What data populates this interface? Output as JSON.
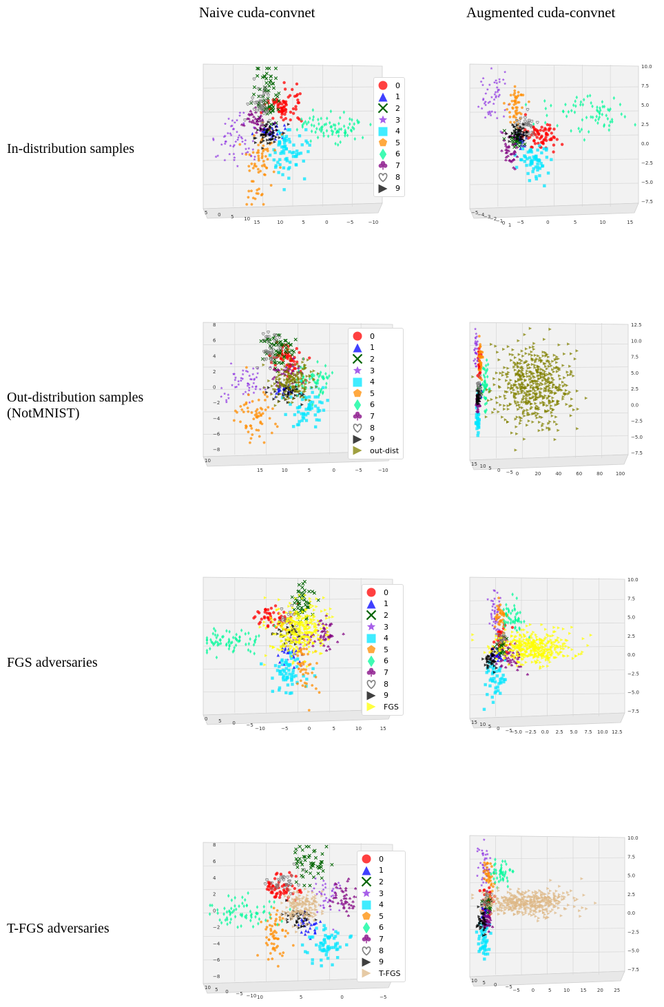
{
  "figure": {
    "column_titles": [
      "Naive cuda-convnet",
      "Augmented cuda-convnet"
    ],
    "row_titles": [
      "In-distribution samples",
      "Out-distribution samples\n(NotMNIST)",
      "FGS adversaries",
      "T-FGS adversaries"
    ]
  },
  "class_styles": [
    {
      "label": "0",
      "marker": "circle",
      "color": "#ff0000"
    },
    {
      "label": "1",
      "marker": "triangle-up",
      "color": "#0000ff"
    },
    {
      "label": "2",
      "marker": "x",
      "color": "#006400"
    },
    {
      "label": "3",
      "marker": "star",
      "color": "#8a2be2"
    },
    {
      "label": "4",
      "marker": "square",
      "color": "#00e5ff"
    },
    {
      "label": "5",
      "marker": "pentagon",
      "color": "#ff8c00"
    },
    {
      "label": "6",
      "marker": "diamond",
      "color": "#00fa9a"
    },
    {
      "label": "7",
      "marker": "club",
      "color": "#800080"
    },
    {
      "label": "8",
      "marker": "heart",
      "color": "#808080"
    },
    {
      "label": "9",
      "marker": "triangle-right",
      "color": "#000000"
    }
  ],
  "extra_styles": {
    "out-dist": {
      "marker": "triangle-right",
      "color": "#808000"
    },
    "FGS": {
      "marker": "triangle-right",
      "color": "#ffff00"
    },
    "T-FGS": {
      "marker": "triangle-right",
      "color": "#deb887"
    }
  },
  "chart_data": [
    {
      "type": "scatter",
      "row": "In-distribution samples",
      "column": "Naive cuda-convnet",
      "legend": [
        "0",
        "1",
        "2",
        "3",
        "4",
        "5",
        "6",
        "7",
        "8",
        "9"
      ],
      "axis_a_ticks": [
        "5",
        "0",
        "5",
        "10"
      ],
      "axis_b_ticks": [
        "15",
        "10",
        "5",
        "0",
        "−5",
        "−10"
      ],
      "axis_v_ticks": [],
      "clusters": [
        {
          "label": "0",
          "cx": 0.45,
          "cy": 0.3,
          "sx": 0.05,
          "sy": 0.06,
          "n": 70
        },
        {
          "label": "1",
          "cx": 0.38,
          "cy": 0.47,
          "sx": 0.03,
          "sy": 0.03,
          "n": 30
        },
        {
          "label": "2",
          "cx": 0.35,
          "cy": 0.22,
          "sx": 0.04,
          "sy": 0.11,
          "n": 70
        },
        {
          "label": "3",
          "cx": 0.2,
          "cy": 0.52,
          "sx": 0.07,
          "sy": 0.08,
          "n": 60
        },
        {
          "label": "4",
          "cx": 0.48,
          "cy": 0.6,
          "sx": 0.05,
          "sy": 0.09,
          "n": 70
        },
        {
          "label": "5",
          "cx": 0.32,
          "cy": 0.72,
          "sx": 0.04,
          "sy": 0.13,
          "n": 70
        },
        {
          "label": "6",
          "cx": 0.72,
          "cy": 0.43,
          "sx": 0.1,
          "sy": 0.05,
          "n": 80
        },
        {
          "label": "7",
          "cx": 0.3,
          "cy": 0.4,
          "sx": 0.04,
          "sy": 0.05,
          "n": 45
        },
        {
          "label": "8",
          "cx": 0.32,
          "cy": 0.28,
          "sx": 0.03,
          "sy": 0.08,
          "n": 40
        },
        {
          "label": "9",
          "cx": 0.36,
          "cy": 0.5,
          "sx": 0.04,
          "sy": 0.04,
          "n": 50
        }
      ]
    },
    {
      "type": "scatter",
      "row": "In-distribution samples",
      "column": "Augmented cuda-convnet",
      "legend": [],
      "axis_a_ticks": [
        "−5",
        "−4",
        "−3",
        "−2",
        "−1",
        "0",
        "1"
      ],
      "axis_b_ticks": [
        "−5",
        "0",
        "5",
        "10",
        "15"
      ],
      "axis_v_ticks": [
        "10.0",
        "7.5",
        "5.0",
        "2.5",
        "0.0",
        "−2.5",
        "−5.0",
        "−7.5"
      ],
      "clusters": [
        {
          "label": "0",
          "cx": 0.42,
          "cy": 0.5,
          "sx": 0.05,
          "sy": 0.05,
          "n": 70
        },
        {
          "label": "1",
          "cx": 0.3,
          "cy": 0.52,
          "sx": 0.02,
          "sy": 0.03,
          "n": 25
        },
        {
          "label": "2",
          "cx": 0.27,
          "cy": 0.53,
          "sx": 0.02,
          "sy": 0.03,
          "n": 30
        },
        {
          "label": "3",
          "cx": 0.14,
          "cy": 0.22,
          "sx": 0.04,
          "sy": 0.1,
          "n": 50
        },
        {
          "label": "4",
          "cx": 0.38,
          "cy": 0.68,
          "sx": 0.05,
          "sy": 0.06,
          "n": 60
        },
        {
          "label": "5",
          "cx": 0.27,
          "cy": 0.28,
          "sx": 0.03,
          "sy": 0.08,
          "n": 50
        },
        {
          "label": "6",
          "cx": 0.7,
          "cy": 0.35,
          "sx": 0.12,
          "sy": 0.07,
          "n": 70
        },
        {
          "label": "7",
          "cx": 0.24,
          "cy": 0.6,
          "sx": 0.03,
          "sy": 0.05,
          "n": 40
        },
        {
          "label": "8",
          "cx": 0.33,
          "cy": 0.44,
          "sx": 0.03,
          "sy": 0.04,
          "n": 40
        },
        {
          "label": "9",
          "cx": 0.28,
          "cy": 0.48,
          "sx": 0.03,
          "sy": 0.03,
          "n": 50
        }
      ]
    },
    {
      "type": "scatter",
      "row": "Out-distribution samples (NotMNIST)",
      "column": "Naive cuda-convnet",
      "legend": [
        "0",
        "1",
        "2",
        "3",
        "4",
        "5",
        "6",
        "7",
        "8",
        "9",
        "out-dist"
      ],
      "axis_a_ticks": [
        "10"
      ],
      "axis_b_ticks": [
        "15",
        "10",
        "5",
        "0",
        "−5",
        "−10"
      ],
      "axis_v_ticks": [
        "8",
        "6",
        "4",
        "2",
        "0",
        "−2",
        "−4",
        "−6",
        "−8"
      ],
      "clusters": [
        {
          "label": "0",
          "cx": 0.45,
          "cy": 0.28,
          "sx": 0.05,
          "sy": 0.06,
          "n": 60
        },
        {
          "label": "1",
          "cx": 0.42,
          "cy": 0.5,
          "sx": 0.03,
          "sy": 0.03,
          "n": 25
        },
        {
          "label": "2",
          "cx": 0.4,
          "cy": 0.18,
          "sx": 0.04,
          "sy": 0.07,
          "n": 60
        },
        {
          "label": "3",
          "cx": 0.22,
          "cy": 0.46,
          "sx": 0.07,
          "sy": 0.07,
          "n": 55
        },
        {
          "label": "4",
          "cx": 0.55,
          "cy": 0.62,
          "sx": 0.05,
          "sy": 0.08,
          "n": 60
        },
        {
          "label": "5",
          "cx": 0.28,
          "cy": 0.7,
          "sx": 0.05,
          "sy": 0.11,
          "n": 60
        },
        {
          "label": "6",
          "cx": 0.58,
          "cy": 0.42,
          "sx": 0.06,
          "sy": 0.06,
          "n": 60
        },
        {
          "label": "7",
          "cx": 0.44,
          "cy": 0.38,
          "sx": 0.04,
          "sy": 0.05,
          "n": 35
        },
        {
          "label": "8",
          "cx": 0.35,
          "cy": 0.2,
          "sx": 0.03,
          "sy": 0.07,
          "n": 40
        },
        {
          "label": "9",
          "cx": 0.45,
          "cy": 0.52,
          "sx": 0.04,
          "sy": 0.04,
          "n": 40
        },
        {
          "label": "out-dist",
          "cx": 0.46,
          "cy": 0.44,
          "sx": 0.06,
          "sy": 0.07,
          "n": 160
        }
      ]
    },
    {
      "type": "scatter",
      "row": "Out-distribution samples (NotMNIST)",
      "column": "Augmented cuda-convnet",
      "legend": [],
      "axis_a_ticks": [
        "15",
        "10",
        "5",
        "0",
        "−5"
      ],
      "axis_b_ticks": [
        "0",
        "20",
        "40",
        "60",
        "80",
        "100"
      ],
      "axis_v_ticks": [
        "12.5",
        "10.0",
        "7.5",
        "5.0",
        "2.5",
        "0.0",
        "−2.5",
        "−5.0",
        "−7.5"
      ],
      "clusters": [
        {
          "label": "0",
          "cx": 0.06,
          "cy": 0.3,
          "sx": 0.006,
          "sy": 0.06,
          "n": 25
        },
        {
          "label": "1",
          "cx": 0.06,
          "cy": 0.5,
          "sx": 0.006,
          "sy": 0.03,
          "n": 20
        },
        {
          "label": "2",
          "cx": 0.06,
          "cy": 0.5,
          "sx": 0.006,
          "sy": 0.03,
          "n": 20
        },
        {
          "label": "3",
          "cx": 0.04,
          "cy": 0.2,
          "sx": 0.006,
          "sy": 0.08,
          "n": 30
        },
        {
          "label": "4",
          "cx": 0.05,
          "cy": 0.72,
          "sx": 0.006,
          "sy": 0.06,
          "n": 30
        },
        {
          "label": "5",
          "cx": 0.07,
          "cy": 0.26,
          "sx": 0.006,
          "sy": 0.07,
          "n": 30
        },
        {
          "label": "6",
          "cx": 0.1,
          "cy": 0.45,
          "sx": 0.01,
          "sy": 0.08,
          "n": 40
        },
        {
          "label": "7",
          "cx": 0.05,
          "cy": 0.58,
          "sx": 0.006,
          "sy": 0.04,
          "n": 25
        },
        {
          "label": "8",
          "cx": 0.06,
          "cy": 0.48,
          "sx": 0.006,
          "sy": 0.04,
          "n": 15
        },
        {
          "label": "9",
          "cx": 0.055,
          "cy": 0.55,
          "sx": 0.006,
          "sy": 0.04,
          "n": 25
        },
        {
          "label": "out-dist",
          "cx": 0.4,
          "cy": 0.45,
          "sx": 0.12,
          "sy": 0.15,
          "n": 520
        }
      ]
    },
    {
      "type": "scatter",
      "row": "FGS adversaries",
      "column": "Naive cuda-convnet",
      "legend": [
        "0",
        "1",
        "2",
        "3",
        "4",
        "5",
        "6",
        "7",
        "8",
        "9",
        "FGS"
      ],
      "axis_a_ticks": [
        "0",
        "5",
        "0",
        "−5"
      ],
      "axis_b_ticks": [
        "−10",
        "−5",
        "0",
        "5",
        "10",
        "15"
      ],
      "axis_v_ticks": [],
      "clusters": [
        {
          "label": "0",
          "cx": 0.38,
          "cy": 0.3,
          "sx": 0.05,
          "sy": 0.05,
          "n": 50
        },
        {
          "label": "1",
          "cx": 0.45,
          "cy": 0.55,
          "sx": 0.03,
          "sy": 0.04,
          "n": 25
        },
        {
          "label": "2",
          "cx": 0.52,
          "cy": 0.2,
          "sx": 0.03,
          "sy": 0.08,
          "n": 50
        },
        {
          "label": "3",
          "cx": 0.5,
          "cy": 0.45,
          "sx": 0.04,
          "sy": 0.06,
          "n": 35
        },
        {
          "label": "4",
          "cx": 0.45,
          "cy": 0.7,
          "sx": 0.05,
          "sy": 0.08,
          "n": 60
        },
        {
          "label": "5",
          "cx": 0.53,
          "cy": 0.65,
          "sx": 0.03,
          "sy": 0.1,
          "n": 45
        },
        {
          "label": "6",
          "cx": 0.14,
          "cy": 0.46,
          "sx": 0.08,
          "sy": 0.05,
          "n": 70
        },
        {
          "label": "7",
          "cx": 0.63,
          "cy": 0.42,
          "sx": 0.04,
          "sy": 0.06,
          "n": 50
        },
        {
          "label": "8",
          "cx": 0.45,
          "cy": 0.32,
          "sx": 0.03,
          "sy": 0.05,
          "n": 20
        },
        {
          "label": "9",
          "cx": 0.45,
          "cy": 0.42,
          "sx": 0.04,
          "sy": 0.04,
          "n": 30
        },
        {
          "label": "FGS",
          "cx": 0.5,
          "cy": 0.38,
          "sx": 0.07,
          "sy": 0.1,
          "n": 300
        }
      ]
    },
    {
      "type": "scatter",
      "row": "FGS adversaries",
      "column": "Augmented cuda-convnet",
      "legend": [],
      "axis_a_ticks": [
        "15",
        "10",
        "5",
        "0",
        "−5"
      ],
      "axis_b_ticks": [
        "−5.0",
        "−2.5",
        "0.0",
        "2.5",
        "5.0",
        "7.5",
        "10.0",
        "12.5"
      ],
      "axis_v_ticks": [
        "10.0",
        "7.5",
        "5.0",
        "2.5",
        "0.0",
        "−2.5",
        "−5.0",
        "−7.5"
      ],
      "clusters": [
        {
          "label": "0",
          "cx": 0.2,
          "cy": 0.45,
          "sx": 0.03,
          "sy": 0.05,
          "n": 40
        },
        {
          "label": "1",
          "cx": 0.17,
          "cy": 0.55,
          "sx": 0.02,
          "sy": 0.03,
          "n": 25
        },
        {
          "label": "2",
          "cx": 0.2,
          "cy": 0.5,
          "sx": 0.02,
          "sy": 0.04,
          "n": 25
        },
        {
          "label": "3",
          "cx": 0.16,
          "cy": 0.24,
          "sx": 0.02,
          "sy": 0.08,
          "n": 45
        },
        {
          "label": "4",
          "cx": 0.16,
          "cy": 0.72,
          "sx": 0.03,
          "sy": 0.06,
          "n": 45
        },
        {
          "label": "5",
          "cx": 0.2,
          "cy": 0.3,
          "sx": 0.02,
          "sy": 0.06,
          "n": 40
        },
        {
          "label": "6",
          "cx": 0.28,
          "cy": 0.3,
          "sx": 0.04,
          "sy": 0.05,
          "n": 50
        },
        {
          "label": "7",
          "cx": 0.26,
          "cy": 0.58,
          "sx": 0.04,
          "sy": 0.04,
          "n": 45
        },
        {
          "label": "8",
          "cx": 0.2,
          "cy": 0.44,
          "sx": 0.02,
          "sy": 0.03,
          "n": 15
        },
        {
          "label": "9",
          "cx": 0.14,
          "cy": 0.6,
          "sx": 0.02,
          "sy": 0.04,
          "n": 40
        },
        {
          "label": "FGS",
          "cx": 0.4,
          "cy": 0.5,
          "sx": 0.12,
          "sy": 0.06,
          "n": 380
        }
      ]
    },
    {
      "type": "scatter",
      "row": "T-FGS adversaries",
      "column": "Naive cuda-convnet",
      "legend": [
        "0",
        "1",
        "2",
        "3",
        "4",
        "5",
        "6",
        "7",
        "8",
        "9",
        "T-FGS"
      ],
      "axis_a_ticks": [
        "10",
        "5",
        "0",
        "−5",
        "−10"
      ],
      "axis_b_ticks": [
        "10",
        "5",
        "0",
        "−5"
      ],
      "axis_v_ticks": [
        "8",
        "6",
        "4",
        "2",
        "0",
        "−2",
        "−4",
        "−6",
        "−8"
      ],
      "clusters": [
        {
          "label": "0",
          "cx": 0.42,
          "cy": 0.33,
          "sx": 0.05,
          "sy": 0.05,
          "n": 60
        },
        {
          "label": "1",
          "cx": 0.55,
          "cy": 0.58,
          "sx": 0.03,
          "sy": 0.04,
          "n": 25
        },
        {
          "label": "2",
          "cx": 0.55,
          "cy": 0.15,
          "sx": 0.04,
          "sy": 0.06,
          "n": 50
        },
        {
          "label": "3",
          "cx": 0.65,
          "cy": 0.38,
          "sx": 0.04,
          "sy": 0.06,
          "n": 40
        },
        {
          "label": "4",
          "cx": 0.65,
          "cy": 0.72,
          "sx": 0.05,
          "sy": 0.07,
          "n": 60
        },
        {
          "label": "5",
          "cx": 0.38,
          "cy": 0.66,
          "sx": 0.04,
          "sy": 0.1,
          "n": 60
        },
        {
          "label": "6",
          "cx": 0.22,
          "cy": 0.5,
          "sx": 0.08,
          "sy": 0.05,
          "n": 70
        },
        {
          "label": "7",
          "cx": 0.75,
          "cy": 0.4,
          "sx": 0.04,
          "sy": 0.06,
          "n": 45
        },
        {
          "label": "8",
          "cx": 0.42,
          "cy": 0.27,
          "sx": 0.04,
          "sy": 0.05,
          "n": 30
        },
        {
          "label": "9",
          "cx": 0.5,
          "cy": 0.54,
          "sx": 0.04,
          "sy": 0.04,
          "n": 40
        },
        {
          "label": "T-FGS",
          "cx": 0.52,
          "cy": 0.45,
          "sx": 0.05,
          "sy": 0.06,
          "n": 150
        }
      ]
    },
    {
      "type": "scatter",
      "row": "T-FGS adversaries",
      "column": "Augmented cuda-convnet",
      "legend": [],
      "axis_a_ticks": [
        "10",
        "5",
        "0",
        "−5"
      ],
      "axis_b_ticks": [
        "−5",
        "0",
        "5",
        "10",
        "15",
        "20",
        "25"
      ],
      "axis_v_ticks": [
        "10.0",
        "7.5",
        "5.0",
        "2.5",
        "0.0",
        "−2.5",
        "−5.0",
        "−7.5"
      ],
      "clusters": [
        {
          "label": "0",
          "cx": 0.12,
          "cy": 0.45,
          "sx": 0.02,
          "sy": 0.05,
          "n": 35
        },
        {
          "label": "1",
          "cx": 0.1,
          "cy": 0.55,
          "sx": 0.015,
          "sy": 0.03,
          "n": 20
        },
        {
          "label": "2",
          "cx": 0.12,
          "cy": 0.5,
          "sx": 0.015,
          "sy": 0.04,
          "n": 25
        },
        {
          "label": "3",
          "cx": 0.1,
          "cy": 0.22,
          "sx": 0.02,
          "sy": 0.08,
          "n": 45
        },
        {
          "label": "4",
          "cx": 0.09,
          "cy": 0.73,
          "sx": 0.02,
          "sy": 0.06,
          "n": 45
        },
        {
          "label": "5",
          "cx": 0.12,
          "cy": 0.3,
          "sx": 0.02,
          "sy": 0.06,
          "n": 35
        },
        {
          "label": "6",
          "cx": 0.2,
          "cy": 0.26,
          "sx": 0.03,
          "sy": 0.05,
          "n": 45
        },
        {
          "label": "7",
          "cx": 0.11,
          "cy": 0.6,
          "sx": 0.02,
          "sy": 0.04,
          "n": 40
        },
        {
          "label": "8",
          "cx": 0.11,
          "cy": 0.44,
          "sx": 0.015,
          "sy": 0.03,
          "n": 15
        },
        {
          "label": "9",
          "cx": 0.08,
          "cy": 0.6,
          "sx": 0.015,
          "sy": 0.05,
          "n": 40
        },
        {
          "label": "T-FGS",
          "cx": 0.38,
          "cy": 0.48,
          "sx": 0.14,
          "sy": 0.05,
          "n": 380
        }
      ]
    }
  ]
}
